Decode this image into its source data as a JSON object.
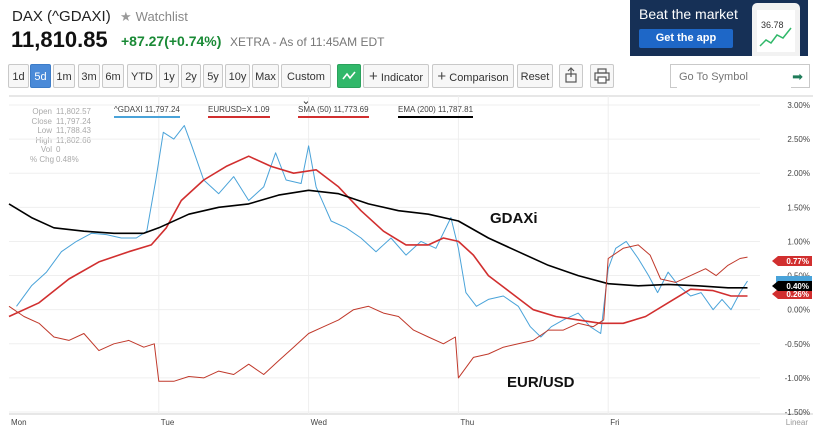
{
  "header": {
    "ticker": "DAX (^GDAXI)",
    "watchlist_label": "Watchlist",
    "price": "11,810.85",
    "change": "+87.27(+0.74%)",
    "exchange": "XETRA - As of 11:45AM EDT"
  },
  "ad": {
    "title": "Beat the market",
    "button": "Get the app",
    "phone_value": "36.78"
  },
  "toolbar": {
    "ranges": [
      "1d",
      "5d",
      "1m",
      "3m",
      "6m",
      "YTD",
      "1y",
      "2y",
      "5y",
      "10y",
      "Max"
    ],
    "active_range": "5d",
    "custom_label": "Custom",
    "indicator_label": "Indicator",
    "comparison_label": "Comparison",
    "reset_label": "Reset",
    "symbol_placeholder": "Go To Symbol"
  },
  "ohlc": [
    {
      "label": "Open",
      "value": "11,802.57"
    },
    {
      "label": "Close",
      "value": "11,797.24"
    },
    {
      "label": "Low",
      "value": "11,788.43"
    },
    {
      "label": "High",
      "value": "11,802.66"
    },
    {
      "label": "Vol",
      "value": "0"
    },
    {
      "label": "% Chg",
      "value": "0.48%"
    }
  ],
  "legend": [
    {
      "label": "^GDAXI 11,797.24",
      "color": "#4aa3d9"
    },
    {
      "label": "EURUSD=X 1.09",
      "color": "#d12f2f"
    },
    {
      "label": "SMA (50) 11,773.69",
      "color": "#d12f2f"
    },
    {
      "label": "EMA (200) 11,787.81",
      "color": "#000000"
    }
  ],
  "annotations": {
    "gdaxi": "GDAXi",
    "eurusd": "EUR/USD"
  },
  "badges": [
    "0.77%",
    "0.40%",
    "0.26%"
  ],
  "colors": {
    "gdaxi": "#4aa3d9",
    "sma": "#d12f2f",
    "ema": "#000000",
    "eurusd": "#c0392b",
    "positive": "#1a8a36"
  },
  "chart_data": {
    "type": "line",
    "y_axis": {
      "unit": "%",
      "range": [
        -1.5,
        3.0
      ],
      "ticks": [
        "3.00%",
        "2.50%",
        "2.00%",
        "1.50%",
        "1.00%",
        "0.50%",
        "0.00%",
        "-0.50%",
        "-1.00%",
        "-1.50%"
      ],
      "scale_label": "Linear"
    },
    "x_axis": {
      "days": [
        "Mon",
        "Tue",
        "Wed",
        "Thu",
        "Fri"
      ],
      "range": [
        0,
        5
      ]
    },
    "series": [
      {
        "name": "^GDAXI",
        "color": "#4aa3d9",
        "points": [
          [
            0.05,
            0.05
          ],
          [
            0.15,
            0.35
          ],
          [
            0.25,
            0.55
          ],
          [
            0.35,
            0.85
          ],
          [
            0.45,
            1.0
          ],
          [
            0.55,
            1.12
          ],
          [
            0.65,
            1.1
          ],
          [
            0.75,
            1.05
          ],
          [
            0.85,
            1.05
          ],
          [
            0.92,
            1.15
          ],
          [
            0.98,
            1.9
          ],
          [
            1.03,
            2.6
          ],
          [
            1.1,
            2.5
          ],
          [
            1.17,
            2.7
          ],
          [
            1.22,
            2.4
          ],
          [
            1.3,
            1.9
          ],
          [
            1.4,
            1.7
          ],
          [
            1.5,
            1.95
          ],
          [
            1.6,
            1.6
          ],
          [
            1.7,
            1.8
          ],
          [
            1.78,
            2.3
          ],
          [
            1.85,
            1.9
          ],
          [
            1.95,
            1.85
          ],
          [
            2.0,
            2.4
          ],
          [
            2.05,
            1.8
          ],
          [
            2.1,
            1.55
          ],
          [
            2.15,
            1.3
          ],
          [
            2.25,
            1.2
          ],
          [
            2.35,
            1.05
          ],
          [
            2.45,
            0.85
          ],
          [
            2.55,
            1.05
          ],
          [
            2.65,
            0.8
          ],
          [
            2.75,
            1.0
          ],
          [
            2.85,
            0.9
          ],
          [
            2.95,
            1.35
          ],
          [
            3.0,
            0.9
          ],
          [
            3.05,
            0.25
          ],
          [
            3.12,
            0.05
          ],
          [
            3.2,
            0.15
          ],
          [
            3.3,
            0.2
          ],
          [
            3.4,
            0.05
          ],
          [
            3.48,
            -0.25
          ],
          [
            3.55,
            -0.4
          ],
          [
            3.62,
            -0.25
          ],
          [
            3.7,
            -0.15
          ],
          [
            3.8,
            -0.05
          ],
          [
            3.88,
            -0.25
          ],
          [
            3.95,
            -0.35
          ],
          [
            4.0,
            0.6
          ],
          [
            4.05,
            0.9
          ],
          [
            4.12,
            1.0
          ],
          [
            4.2,
            0.75
          ],
          [
            4.27,
            0.5
          ],
          [
            4.33,
            0.25
          ],
          [
            4.4,
            0.55
          ],
          [
            4.47,
            0.35
          ],
          [
            4.55,
            0.2
          ],
          [
            4.62,
            0.25
          ],
          [
            4.7,
            0.0
          ],
          [
            4.76,
            0.15
          ],
          [
            4.82,
            0.0
          ],
          [
            4.88,
            0.25
          ],
          [
            4.93,
            0.42
          ]
        ]
      },
      {
        "name": "SMA (50)",
        "color": "#d12f2f",
        "points": [
          [
            0.0,
            -0.1
          ],
          [
            0.2,
            0.1
          ],
          [
            0.4,
            0.45
          ],
          [
            0.6,
            0.7
          ],
          [
            0.8,
            0.85
          ],
          [
            0.95,
            0.95
          ],
          [
            1.05,
            1.2
          ],
          [
            1.15,
            1.6
          ],
          [
            1.3,
            1.9
          ],
          [
            1.45,
            2.1
          ],
          [
            1.6,
            2.25
          ],
          [
            1.75,
            2.1
          ],
          [
            1.9,
            2.0
          ],
          [
            2.05,
            2.05
          ],
          [
            2.2,
            1.8
          ],
          [
            2.35,
            1.45
          ],
          [
            2.5,
            1.15
          ],
          [
            2.65,
            0.95
          ],
          [
            2.8,
            0.95
          ],
          [
            2.9,
            1.05
          ],
          [
            3.0,
            1.0
          ],
          [
            3.1,
            0.8
          ],
          [
            3.2,
            0.5
          ],
          [
            3.35,
            0.25
          ],
          [
            3.5,
            0.0
          ],
          [
            3.65,
            -0.1
          ],
          [
            3.8,
            -0.15
          ],
          [
            3.95,
            -0.2
          ],
          [
            4.1,
            -0.2
          ],
          [
            4.25,
            -0.1
          ],
          [
            4.4,
            0.1
          ],
          [
            4.55,
            0.3
          ],
          [
            4.7,
            0.28
          ],
          [
            4.82,
            0.2
          ],
          [
            4.93,
            0.2
          ]
        ]
      },
      {
        "name": "EMA (200)",
        "color": "#000000",
        "points": [
          [
            0.0,
            1.55
          ],
          [
            0.15,
            1.35
          ],
          [
            0.3,
            1.2
          ],
          [
            0.5,
            1.15
          ],
          [
            0.7,
            1.12
          ],
          [
            0.9,
            1.12
          ],
          [
            1.0,
            1.2
          ],
          [
            1.2,
            1.4
          ],
          [
            1.4,
            1.5
          ],
          [
            1.6,
            1.55
          ],
          [
            1.8,
            1.68
          ],
          [
            2.0,
            1.75
          ],
          [
            2.2,
            1.7
          ],
          [
            2.4,
            1.55
          ],
          [
            2.6,
            1.45
          ],
          [
            2.8,
            1.4
          ],
          [
            3.0,
            1.3
          ],
          [
            3.2,
            1.05
          ],
          [
            3.4,
            0.85
          ],
          [
            3.6,
            0.65
          ],
          [
            3.8,
            0.5
          ],
          [
            4.0,
            0.38
          ],
          [
            4.2,
            0.35
          ],
          [
            4.4,
            0.37
          ],
          [
            4.6,
            0.35
          ],
          [
            4.8,
            0.32
          ],
          [
            4.93,
            0.32
          ]
        ]
      },
      {
        "name": "EUR/USD",
        "color": "#c0392b",
        "points": [
          [
            0.0,
            0.05
          ],
          [
            0.1,
            -0.1
          ],
          [
            0.2,
            -0.2
          ],
          [
            0.3,
            -0.4
          ],
          [
            0.4,
            -0.45
          ],
          [
            0.5,
            -0.35
          ],
          [
            0.6,
            -0.6
          ],
          [
            0.7,
            -0.5
          ],
          [
            0.8,
            -0.45
          ],
          [
            0.9,
            -0.55
          ],
          [
            0.97,
            -0.5
          ],
          [
            1.0,
            -1.05
          ],
          [
            1.1,
            -1.05
          ],
          [
            1.2,
            -0.98
          ],
          [
            1.3,
            -1.0
          ],
          [
            1.4,
            -0.9
          ],
          [
            1.5,
            -0.95
          ],
          [
            1.6,
            -0.8
          ],
          [
            1.7,
            -0.95
          ],
          [
            1.8,
            -0.75
          ],
          [
            1.9,
            -0.55
          ],
          [
            2.0,
            -0.35
          ],
          [
            2.1,
            -0.25
          ],
          [
            2.2,
            -0.15
          ],
          [
            2.3,
            0.0
          ],
          [
            2.4,
            0.05
          ],
          [
            2.5,
            -0.05
          ],
          [
            2.6,
            -0.1
          ],
          [
            2.7,
            -0.3
          ],
          [
            2.8,
            -0.4
          ],
          [
            2.9,
            -0.5
          ],
          [
            2.98,
            -0.4
          ],
          [
            3.0,
            -1.0
          ],
          [
            3.1,
            -0.7
          ],
          [
            3.2,
            -0.65
          ],
          [
            3.3,
            -0.55
          ],
          [
            3.4,
            -0.5
          ],
          [
            3.5,
            -0.45
          ],
          [
            3.6,
            -0.3
          ],
          [
            3.7,
            -0.3
          ],
          [
            3.8,
            -0.2
          ],
          [
            3.9,
            -0.25
          ],
          [
            3.97,
            -0.15
          ],
          [
            4.0,
            0.75
          ],
          [
            4.1,
            0.9
          ],
          [
            4.2,
            0.95
          ],
          [
            4.28,
            0.8
          ],
          [
            4.35,
            0.45
          ],
          [
            4.45,
            0.4
          ],
          [
            4.55,
            0.5
          ],
          [
            4.65,
            0.6
          ],
          [
            4.72,
            0.5
          ],
          [
            4.8,
            0.65
          ],
          [
            4.88,
            0.75
          ],
          [
            4.93,
            0.77
          ]
        ]
      }
    ]
  }
}
